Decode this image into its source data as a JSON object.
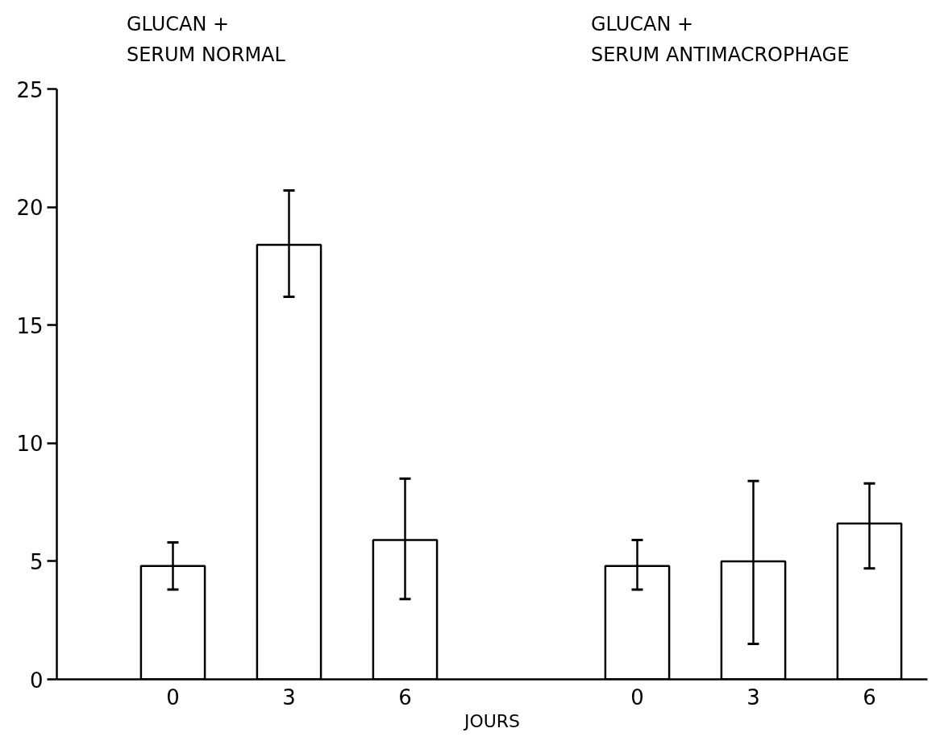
{
  "chart_data": {
    "type": "bar",
    "categories": [
      "0",
      "3",
      "6",
      null,
      "0",
      "3",
      "6"
    ],
    "values": [
      4.8,
      18.4,
      5.9,
      null,
      4.8,
      5.0,
      6.6
    ],
    "errors": [
      [
        3.8,
        5.8
      ],
      [
        16.2,
        20.7
      ],
      [
        3.4,
        8.5
      ],
      null,
      [
        3.8,
        5.9
      ],
      [
        1.5,
        8.4
      ],
      [
        4.7,
        8.3
      ]
    ],
    "color": "#ffffff",
    "xlabel": "JOURS",
    "ylim": [
      0,
      25
    ],
    "yticks": [
      0,
      5,
      10,
      15,
      20,
      25
    ],
    "annotations": [
      "GLUCAN +\nSERUM NORMAL",
      "GLUCAN +\nSERUM ANTIMACROPHAGE"
    ],
    "grid": false
  }
}
